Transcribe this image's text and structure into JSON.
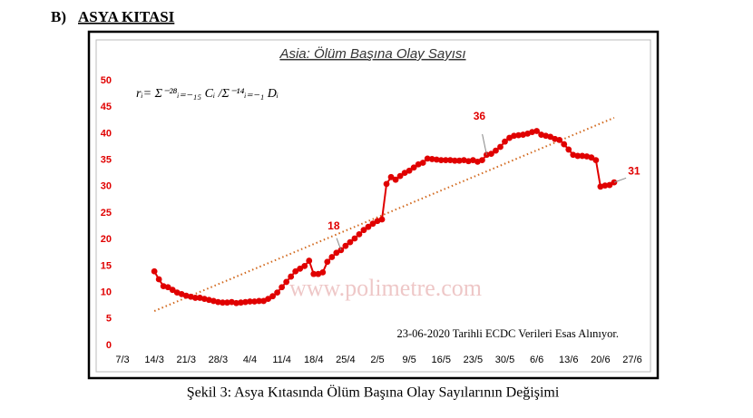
{
  "header": {
    "label": "B)",
    "title": "ASYA KITASI"
  },
  "chart_data": {
    "type": "line",
    "title": "Asia: Ölüm Başına Olay Sayısı",
    "formula": "rᵢ= Σ⁻²⁸ᵢ₌₋₁₅ Cᵢ /Σ⁻¹⁴ᵢ₌₋₁ Dᵢ",
    "watermark": "www.polimetre.com",
    "note": "23-06-2020 Tarihli ECDC Verileri Esas Alınıyor.",
    "x": [
      "14/3",
      "15/3",
      "16/3",
      "17/3",
      "18/3",
      "19/3",
      "20/3",
      "21/3",
      "22/3",
      "23/3",
      "24/3",
      "25/3",
      "26/3",
      "27/3",
      "28/3",
      "29/3",
      "30/3",
      "31/3",
      "1/4",
      "2/4",
      "3/4",
      "4/4",
      "5/4",
      "6/4",
      "7/4",
      "8/4",
      "9/4",
      "10/4",
      "11/4",
      "12/4",
      "13/4",
      "14/4",
      "15/4",
      "16/4",
      "17/4",
      "18/4",
      "19/4",
      "20/4",
      "21/4",
      "22/4",
      "23/4",
      "24/4",
      "25/4",
      "26/4",
      "27/4",
      "28/4",
      "29/4",
      "30/4",
      "1/5",
      "2/5",
      "3/5",
      "4/5",
      "5/5",
      "6/5",
      "7/5",
      "8/5",
      "9/5",
      "10/5",
      "11/5",
      "12/5",
      "13/5",
      "14/5",
      "15/5",
      "16/5",
      "17/5",
      "18/5",
      "19/5",
      "20/5",
      "21/5",
      "22/5",
      "23/5",
      "24/5",
      "25/5",
      "26/5",
      "27/5",
      "28/5",
      "29/5",
      "30/5",
      "31/5",
      "1/6",
      "2/6",
      "3/6",
      "4/6",
      "5/6",
      "6/6",
      "7/6",
      "8/6",
      "9/6",
      "10/6",
      "11/6",
      "12/6",
      "13/6",
      "14/6",
      "15/6",
      "16/6",
      "17/6",
      "18/6",
      "19/6",
      "20/6",
      "21/6",
      "22/6",
      "23/6"
    ],
    "series": [
      {
        "name": "Asia",
        "color": "#e00000",
        "values": [
          14,
          12.5,
          11.2,
          11,
          10.5,
          10,
          9.7,
          9.4,
          9.2,
          9,
          9,
          8.8,
          8.6,
          8.4,
          8.2,
          8.1,
          8.1,
          8.2,
          8,
          8.1,
          8.2,
          8.3,
          8.3,
          8.4,
          8.4,
          8.8,
          9.3,
          10,
          11,
          12,
          13,
          14,
          14.5,
          15,
          16,
          13.5,
          13.5,
          13.8,
          15.8,
          16.7,
          17.5,
          18,
          18.8,
          19.5,
          20.2,
          21,
          21.8,
          22.4,
          23,
          23.5,
          23.8,
          30.5,
          31.8,
          31.3,
          32,
          32.6,
          33,
          33.6,
          34.2,
          34.5,
          35.3,
          35.2,
          35.1,
          35,
          35,
          35,
          34.9,
          34.9,
          35,
          34.8,
          35,
          34.7,
          35,
          36,
          36.2,
          36.8,
          37.5,
          38.5,
          39.2,
          39.6,
          39.7,
          39.8,
          40,
          40.3,
          40.5,
          39.8,
          39.6,
          39.4,
          39,
          38.8,
          38,
          37,
          36,
          35.8,
          35.8,
          35.7,
          35.5,
          35,
          30,
          30.2,
          30.3,
          30.8
        ]
      }
    ],
    "trendline": {
      "x": [
        "14/3",
        "23/6"
      ],
      "values": [
        6.5,
        43
      ],
      "color": "#d2691e"
    },
    "annotations": [
      {
        "label": "18",
        "x": "24/4"
      },
      {
        "label": "36",
        "x": "26/5"
      },
      {
        "label": "31",
        "x": "23/6"
      }
    ],
    "xlim": [
      "7/3",
      "27/6"
    ],
    "xticks": [
      "7/3",
      "14/3",
      "21/3",
      "28/3",
      "4/4",
      "11/4",
      "18/4",
      "25/4",
      "2/5",
      "9/5",
      "16/5",
      "23/5",
      "30/5",
      "6/6",
      "13/6",
      "20/6",
      "27/6"
    ],
    "ylim": [
      0,
      50
    ],
    "yticks": [
      0,
      5,
      10,
      15,
      20,
      25,
      30,
      35,
      40,
      45,
      50
    ],
    "grid": false
  },
  "caption": "Şekil 3: Asya Kıtasında Ölüm Başına Olay Sayılarının Değişimi"
}
